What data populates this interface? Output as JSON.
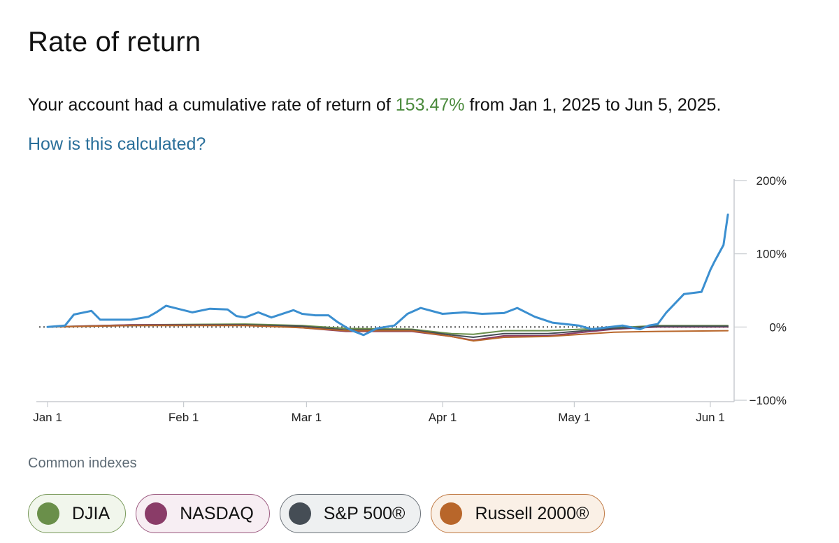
{
  "header": {
    "title": "Rate of return",
    "summary_prefix": "Your account had a cumulative rate of return of ",
    "summary_value": "153.47%",
    "summary_suffix": " from Jan 1, 2025 to Jun 5, 2025.",
    "how_link": "How is this calculated?"
  },
  "colors": {
    "account": "#3b8fd0",
    "djia": "#6a8f4a",
    "nasdaq": "#8a3c68",
    "sp500": "#454d55",
    "russell": "#b8662a",
    "positive": "#4a8a3c",
    "link": "#2a6f9a"
  },
  "chart_data": {
    "type": "line",
    "x_start": "2025-01-01",
    "x_end": "2025-06-05",
    "xticks": [
      {
        "label": "Jan 1",
        "date": "2025-01-01"
      },
      {
        "label": "Feb 1",
        "date": "2025-02-01"
      },
      {
        "label": "Mar 1",
        "date": "2025-03-01"
      },
      {
        "label": "Apr 1",
        "date": "2025-04-01"
      },
      {
        "label": "May 1",
        "date": "2025-05-01"
      },
      {
        "label": "Jun 1",
        "date": "2025-06-01"
      }
    ],
    "ylim": [
      -100,
      200
    ],
    "yticks": [
      {
        "label": "200%",
        "value": 200
      },
      {
        "label": "100%",
        "value": 100
      },
      {
        "label": "0%",
        "value": 0
      },
      {
        "label": "−100%",
        "value": -100
      }
    ],
    "baseline": 0,
    "series": [
      {
        "name": "DJIA",
        "color": "#6a8f4a",
        "points": [
          [
            "2025-01-01",
            0
          ],
          [
            "2025-01-20",
            3
          ],
          [
            "2025-02-15",
            4
          ],
          [
            "2025-02-28",
            2
          ],
          [
            "2025-03-10",
            -2
          ],
          [
            "2025-03-25",
            -3
          ],
          [
            "2025-04-03",
            -9
          ],
          [
            "2025-04-08",
            -10
          ],
          [
            "2025-04-15",
            -5
          ],
          [
            "2025-04-25",
            -5
          ],
          [
            "2025-05-10",
            -1
          ],
          [
            "2025-05-20",
            2
          ],
          [
            "2025-06-05",
            2
          ]
        ]
      },
      {
        "name": "NASDAQ",
        "color": "#8a3c68",
        "points": [
          [
            "2025-01-01",
            0
          ],
          [
            "2025-01-20",
            3
          ],
          [
            "2025-02-15",
            3
          ],
          [
            "2025-02-28",
            -1
          ],
          [
            "2025-03-10",
            -6
          ],
          [
            "2025-03-25",
            -6
          ],
          [
            "2025-04-03",
            -13
          ],
          [
            "2025-04-08",
            -18
          ],
          [
            "2025-04-15",
            -12
          ],
          [
            "2025-04-25",
            -12
          ],
          [
            "2025-05-10",
            -3
          ],
          [
            "2025-05-20",
            0
          ],
          [
            "2025-06-05",
            0
          ]
        ]
      },
      {
        "name": "S&P 500®",
        "color": "#454d55",
        "points": [
          [
            "2025-01-01",
            0
          ],
          [
            "2025-01-20",
            2
          ],
          [
            "2025-02-15",
            3
          ],
          [
            "2025-02-28",
            1
          ],
          [
            "2025-03-10",
            -4
          ],
          [
            "2025-03-25",
            -4
          ],
          [
            "2025-04-03",
            -11
          ],
          [
            "2025-04-08",
            -14
          ],
          [
            "2025-04-15",
            -9
          ],
          [
            "2025-04-25",
            -9
          ],
          [
            "2025-05-10",
            -2
          ],
          [
            "2025-05-20",
            1
          ],
          [
            "2025-06-05",
            1
          ]
        ]
      },
      {
        "name": "Russell 2000®",
        "color": "#b8662a",
        "points": [
          [
            "2025-01-01",
            0
          ],
          [
            "2025-01-20",
            2
          ],
          [
            "2025-02-15",
            2
          ],
          [
            "2025-02-28",
            -1
          ],
          [
            "2025-03-10",
            -5
          ],
          [
            "2025-03-25",
            -5
          ],
          [
            "2025-04-03",
            -13
          ],
          [
            "2025-04-08",
            -19
          ],
          [
            "2025-04-15",
            -14
          ],
          [
            "2025-04-25",
            -13
          ],
          [
            "2025-05-10",
            -7
          ],
          [
            "2025-05-20",
            -6
          ],
          [
            "2025-06-05",
            -5
          ]
        ]
      },
      {
        "name": "",
        "color": "#3b8fd0",
        "points": [
          [
            "2025-01-01",
            0
          ],
          [
            "2025-01-05",
            2
          ],
          [
            "2025-01-07",
            17
          ],
          [
            "2025-01-11",
            22
          ],
          [
            "2025-01-13",
            10
          ],
          [
            "2025-01-20",
            10
          ],
          [
            "2025-01-24",
            14
          ],
          [
            "2025-01-26",
            21
          ],
          [
            "2025-01-28",
            29
          ],
          [
            "2025-02-03",
            20
          ],
          [
            "2025-02-07",
            25
          ],
          [
            "2025-02-11",
            24
          ],
          [
            "2025-02-13",
            15
          ],
          [
            "2025-02-15",
            13
          ],
          [
            "2025-02-18",
            20
          ],
          [
            "2025-02-21",
            13
          ],
          [
            "2025-02-26",
            23
          ],
          [
            "2025-02-28",
            18
          ],
          [
            "2025-03-03",
            16
          ],
          [
            "2025-03-06",
            16
          ],
          [
            "2025-03-08",
            7
          ],
          [
            "2025-03-11",
            -4
          ],
          [
            "2025-03-14",
            -11
          ],
          [
            "2025-03-17",
            -2
          ],
          [
            "2025-03-21",
            2
          ],
          [
            "2025-03-24",
            18
          ],
          [
            "2025-03-27",
            26
          ],
          [
            "2025-04-01",
            18
          ],
          [
            "2025-04-06",
            20
          ],
          [
            "2025-04-10",
            18
          ],
          [
            "2025-04-15",
            19
          ],
          [
            "2025-04-18",
            26
          ],
          [
            "2025-04-22",
            14
          ],
          [
            "2025-04-26",
            6
          ],
          [
            "2025-05-02",
            2
          ],
          [
            "2025-05-05",
            -3
          ],
          [
            "2025-05-12",
            2
          ],
          [
            "2025-05-16",
            -3
          ],
          [
            "2025-05-18",
            2
          ],
          [
            "2025-05-20",
            4
          ],
          [
            "2025-05-22",
            20
          ],
          [
            "2025-05-26",
            45
          ],
          [
            "2025-05-30",
            48
          ],
          [
            "2025-06-01",
            78
          ],
          [
            "2025-06-02",
            90
          ],
          [
            "2025-06-04",
            112
          ],
          [
            "2025-06-05",
            153.47
          ]
        ]
      }
    ]
  },
  "indexes": {
    "label": "Common indexes",
    "items": [
      {
        "name": "DJIA",
        "color": "#6a8f4a",
        "bg": "#f1f6ec",
        "border": "#7a9a5c"
      },
      {
        "name": "NASDAQ",
        "color": "#8a3c68",
        "bg": "#f7eef3",
        "border": "#9c5a80"
      },
      {
        "name": "S&P 500®",
        "color": "#454d55",
        "bg": "#eef0f1",
        "border": "#6a7178"
      },
      {
        "name": "Russell 2000®",
        "color": "#b8662a",
        "bg": "#faf0e6",
        "border": "#c07a44"
      }
    ]
  }
}
